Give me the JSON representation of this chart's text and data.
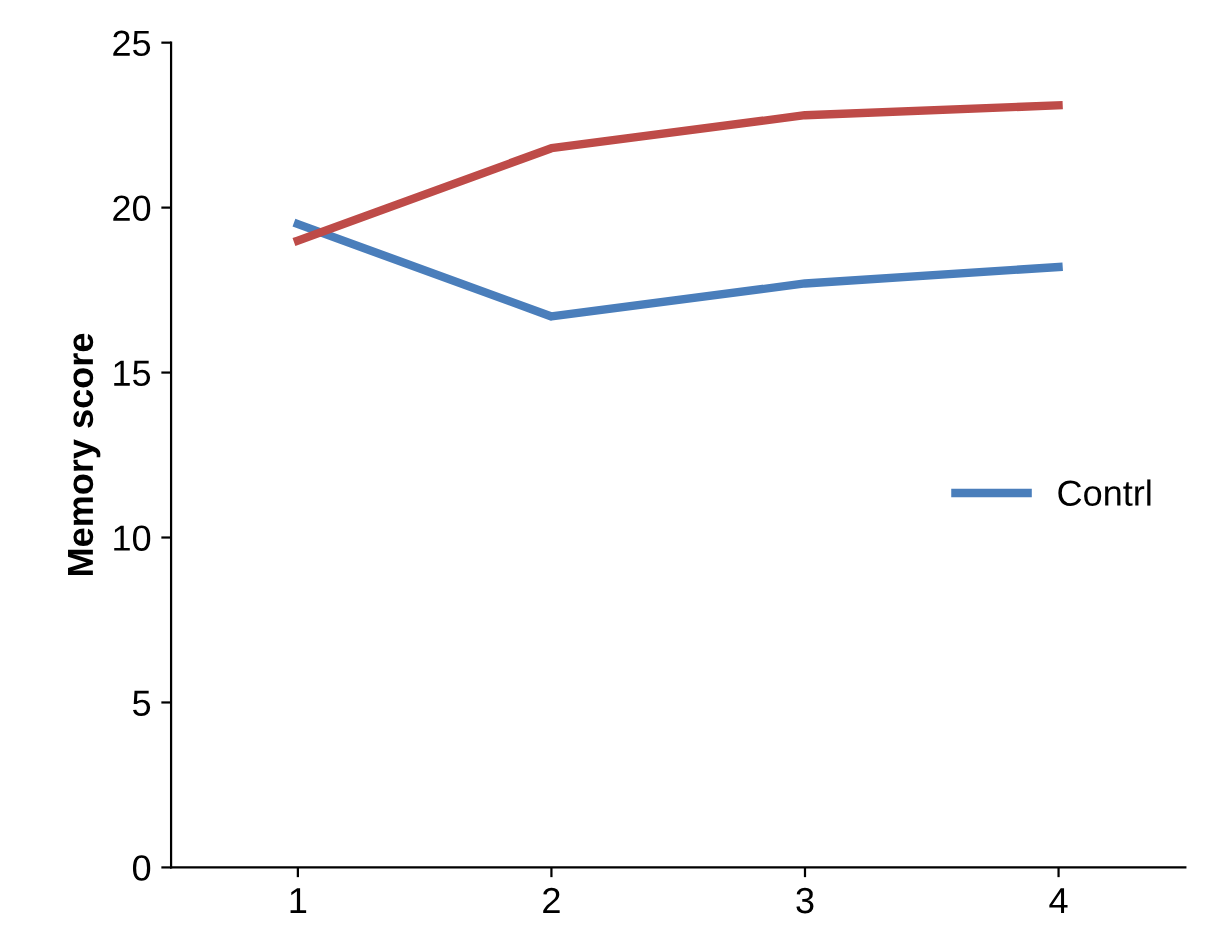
{
  "chart_data": {
    "type": "line",
    "ylabel": "Memory score",
    "categories": [
      "1",
      "2",
      "3",
      "4"
    ],
    "series": [
      {
        "name": "Contrl",
        "color": "#4a7ebb",
        "values": [
          19.5,
          16.7,
          17.7,
          18.2
        ]
      },
      {
        "color": "#be4b48",
        "values": [
          19.0,
          21.8,
          22.8,
          23.1
        ]
      }
    ],
    "ylim": [
      0,
      25
    ],
    "yticks": [
      0,
      5,
      10,
      15,
      20,
      25
    ],
    "grid": false,
    "legend": "right",
    "marker": "none",
    "line_style": "solid"
  }
}
